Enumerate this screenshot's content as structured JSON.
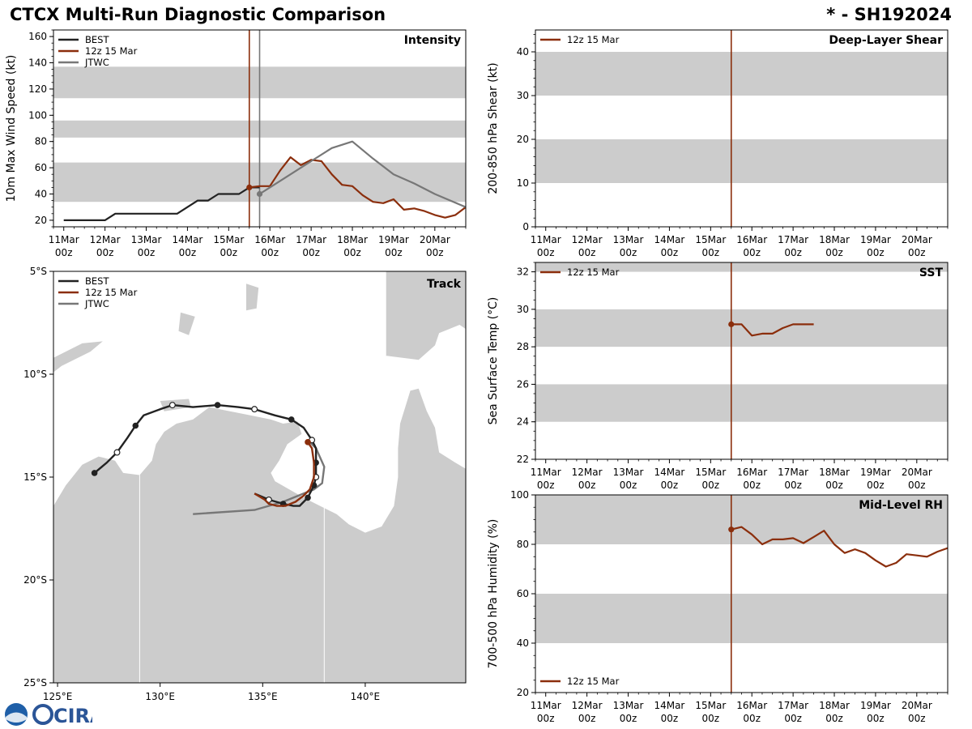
{
  "header": {
    "title": "CTCX Multi-Run Diagnostic Comparison",
    "storm_id": "* - SH192024"
  },
  "colors": {
    "best": "#222222",
    "run": "#8B2E0C",
    "jtwc": "#777777",
    "band": "#cccccc",
    "land": "#cccccc",
    "border": "#ffffff"
  },
  "time_axis": {
    "days": [
      "11Mar",
      "12Mar",
      "13Mar",
      "14Mar",
      "15Mar",
      "16Mar",
      "17Mar",
      "18Mar",
      "19Mar",
      "20Mar"
    ],
    "hour_label": "00z",
    "start": "11Mar 00z",
    "end": "20Mar 18z",
    "unit": "days since 11Mar 00z"
  },
  "legend_labels": {
    "best": "BEST",
    "run": "12z 15 Mar",
    "jtwc": "JTWC"
  },
  "logo": {
    "text": "CIRA"
  },
  "chart_data": [
    {
      "id": "intensity",
      "type": "line",
      "title": "Intensity",
      "ylabel": "10m Max Wind Speed (kt)",
      "xlim": [
        -0.25,
        9.75
      ],
      "ylim": [
        15,
        165
      ],
      "yticks": [
        20,
        40,
        60,
        80,
        100,
        120,
        140,
        160
      ],
      "yminor_step": 5,
      "bands": [
        [
          34,
          64
        ],
        [
          83,
          96
        ],
        [
          113,
          137
        ]
      ],
      "vlines": [
        {
          "x": 4.5,
          "series": "run"
        },
        {
          "x": 4.75,
          "series": "jtwc"
        }
      ],
      "legend": [
        "best",
        "run",
        "jtwc"
      ],
      "series": [
        {
          "name": "BEST",
          "key": "best",
          "x": [
            0.0,
            0.25,
            0.5,
            0.75,
            1.0,
            1.25,
            1.5,
            1.75,
            2.0,
            2.25,
            2.5,
            2.75,
            3.0,
            3.25,
            3.5,
            3.75,
            4.0,
            4.25,
            4.5,
            4.75
          ],
          "y": [
            20,
            20,
            20,
            20,
            20,
            25,
            25,
            25,
            25,
            25,
            25,
            25,
            30,
            35,
            35,
            40,
            40,
            40,
            45,
            45
          ],
          "x_offset": 1
        },
        {
          "name": "12z 15 Mar",
          "key": "run",
          "x": [
            4.5,
            4.75,
            5.0,
            5.25,
            5.5,
            5.75,
            6.0,
            6.25,
            6.5,
            6.75,
            7.0,
            7.25,
            7.5,
            7.75,
            8.0,
            8.25,
            8.5,
            8.75,
            9.0,
            9.25,
            9.5,
            9.75
          ],
          "y": [
            45,
            46,
            46,
            58,
            68,
            62,
            66,
            65,
            55,
            47,
            46,
            39,
            34,
            33,
            36,
            28,
            29,
            27,
            24,
            22,
            24,
            30
          ],
          "marker_first": true
        },
        {
          "name": "JTWC",
          "key": "jtwc",
          "x": [
            4.75,
            5.0,
            5.5,
            6.0,
            6.5,
            7.0,
            7.5,
            8.0,
            8.5,
            9.0,
            9.75
          ],
          "y": [
            40,
            45,
            55,
            65,
            75,
            80,
            67,
            55,
            48,
            40,
            30
          ],
          "marker_first": true
        }
      ]
    },
    {
      "id": "shear",
      "type": "line",
      "title": "Deep-Layer Shear",
      "ylabel": "200-850 hPa Shear (kt)",
      "xlim": [
        -0.25,
        9.75
      ],
      "ylim": [
        0,
        45
      ],
      "yticks": [
        0,
        10,
        20,
        30,
        40
      ],
      "yminor_step": 2,
      "bands": [
        [
          10,
          20
        ],
        [
          30,
          40
        ]
      ],
      "vlines": [
        {
          "x": 4.5,
          "series": "run"
        }
      ],
      "legend": [
        "run"
      ],
      "series": []
    },
    {
      "id": "sst",
      "type": "line",
      "title": "SST",
      "ylabel": "Sea Surface Temp (°C)",
      "xlim": [
        -0.25,
        9.75
      ],
      "ylim": [
        22,
        32.5
      ],
      "yticks": [
        22,
        24,
        26,
        28,
        30,
        32
      ],
      "yminor_step": 0.5,
      "bands": [
        [
          24,
          26
        ],
        [
          28,
          30
        ],
        [
          32,
          34
        ]
      ],
      "vlines": [
        {
          "x": 4.5,
          "series": "run"
        }
      ],
      "legend": [
        "run"
      ],
      "series": [
        {
          "name": "12z 15 Mar",
          "key": "run",
          "x": [
            4.5,
            4.75,
            5.0,
            5.25,
            5.5,
            5.75,
            6.0,
            6.25,
            6.5
          ],
          "y": [
            29.2,
            29.2,
            28.6,
            28.7,
            28.7,
            29.0,
            29.2,
            29.2,
            29.2
          ],
          "marker_first": true
        }
      ]
    },
    {
      "id": "rh",
      "type": "line",
      "title": "Mid-Level RH",
      "ylabel": "700-500 hPa Humidity (%)",
      "xlim": [
        -0.25,
        9.75
      ],
      "ylim": [
        20,
        100
      ],
      "yticks": [
        20,
        40,
        60,
        80,
        100
      ],
      "yminor_step": 5,
      "bands": [
        [
          40,
          60
        ],
        [
          80,
          100
        ]
      ],
      "vlines": [
        {
          "x": 4.5,
          "series": "run"
        }
      ],
      "legend": [
        "run"
      ],
      "legend_position": "bottom-left",
      "series": [
        {
          "name": "12z 15 Mar",
          "key": "run",
          "x": [
            4.5,
            4.75,
            5.0,
            5.25,
            5.5,
            5.75,
            6.0,
            6.25,
            6.5,
            6.75,
            7.0,
            7.25,
            7.5,
            7.75,
            8.0,
            8.25,
            8.5,
            8.75,
            9.0,
            9.25,
            9.5,
            9.75
          ],
          "y": [
            86,
            87,
            84,
            80,
            82,
            82,
            82.5,
            80.5,
            83,
            85.5,
            80,
            76.5,
            78,
            76.5,
            73.5,
            71,
            72.5,
            76,
            75.5,
            75,
            77,
            78.5
          ],
          "marker_first": true
        }
      ]
    },
    {
      "id": "track",
      "type": "scatter",
      "title": "Track",
      "xlabel": "Longitude",
      "ylabel": "Latitude",
      "xlim": [
        124.8,
        144.9
      ],
      "ylim": [
        -25,
        -5
      ],
      "xticks": [
        125,
        130,
        135,
        140
      ],
      "xtick_labels": [
        "125°E",
        "130°E",
        "135°E",
        "140°E"
      ],
      "yticks": [
        -5,
        -10,
        -15,
        -20,
        -25
      ],
      "ytick_labels": [
        "5°S",
        "10°S",
        "15°S",
        "20°S",
        "25°S"
      ],
      "legend": [
        "best",
        "run",
        "jtwc"
      ],
      "series": [
        {
          "name": "BEST",
          "key": "best",
          "lon": [
            126.8,
            127.4,
            127.9,
            128.4,
            128.8,
            129.2,
            130.0,
            130.6,
            131.6,
            132.8,
            133.8,
            134.6,
            135.6,
            136.4,
            137.0,
            137.4,
            137.6,
            137.6,
            137.6,
            137.5,
            137.2,
            136.8,
            136.5,
            136.0,
            135.3,
            134.6
          ],
          "lat": [
            -14.8,
            -14.3,
            -13.8,
            -13.1,
            -12.5,
            -12.0,
            -11.7,
            -11.5,
            -11.6,
            -11.5,
            -11.6,
            -11.7,
            -12.0,
            -12.2,
            -12.6,
            -13.2,
            -13.6,
            -14.3,
            -15.0,
            -15.4,
            -16.0,
            -16.4,
            -16.4,
            -16.3,
            -16.1,
            -15.8
          ],
          "filled": [
            0,
            4,
            9,
            13,
            17,
            19,
            20,
            23
          ],
          "open": [
            2,
            7,
            11,
            15,
            18,
            24
          ]
        },
        {
          "name": "12z 15 Mar",
          "key": "run",
          "lon": [
            137.2,
            137.4,
            137.5,
            137.5,
            137.3,
            137.0,
            136.6,
            136.1,
            135.7,
            135.3,
            135.1,
            134.6
          ],
          "lat": [
            -13.3,
            -13.6,
            -14.3,
            -15.0,
            -15.6,
            -15.9,
            -16.2,
            -16.4,
            -16.4,
            -16.3,
            -16.1,
            -15.8
          ],
          "filled": [
            0
          ]
        },
        {
          "name": "JTWC",
          "key": "jtwc",
          "lon": [
            137.2,
            137.6,
            138.0,
            137.9,
            137.5,
            137.0,
            136.0,
            134.6,
            131.6
          ],
          "lat": [
            -13.2,
            -13.6,
            -14.5,
            -15.3,
            -15.6,
            -15.8,
            -16.2,
            -16.6,
            -16.8
          ]
        }
      ]
    }
  ]
}
